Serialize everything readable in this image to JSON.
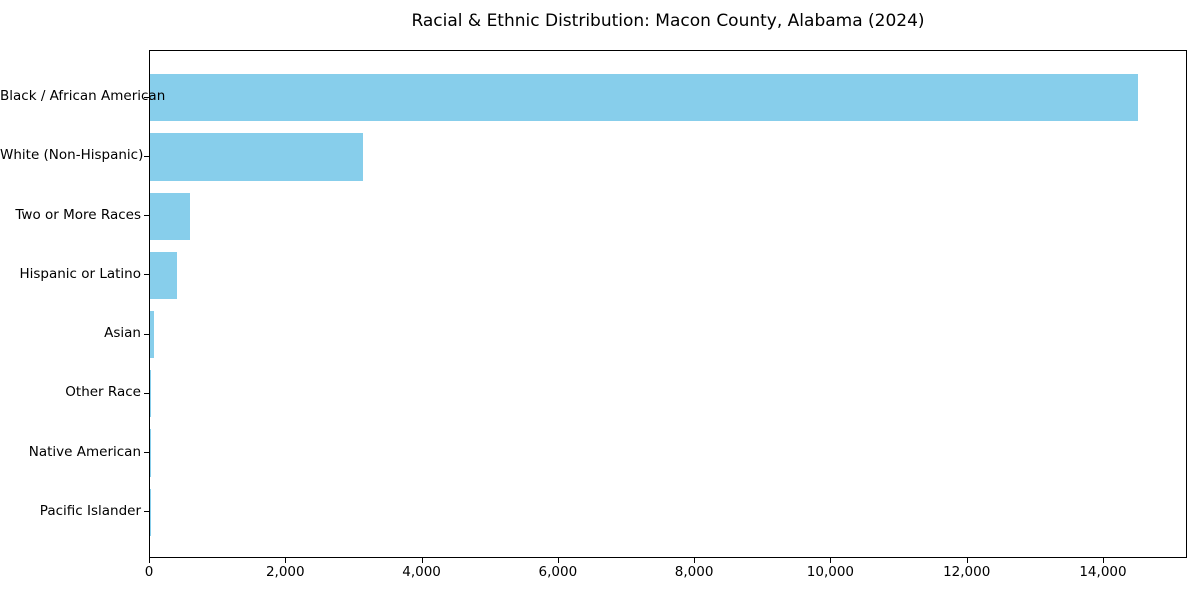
{
  "chart_data": {
    "type": "bar",
    "orientation": "horizontal",
    "title": "Racial & Ethnic Distribution: Macon County, Alabama (2024)",
    "categories": [
      "Black / African American",
      "White (Non-Hispanic)",
      "Two or More Races",
      "Hispanic or Latino",
      "Asian",
      "Other Race",
      "Native American",
      "Pacific Islander"
    ],
    "values": [
      14500,
      3120,
      590,
      400,
      55,
      20,
      10,
      5
    ],
    "xlabel": "",
    "ylabel": "",
    "xlim": [
      0,
      15233
    ],
    "xticks": [
      0,
      2000,
      4000,
      6000,
      8000,
      10000,
      12000,
      14000
    ],
    "xtick_labels": [
      "0",
      "2,000",
      "4,000",
      "6,000",
      "8,000",
      "10,000",
      "12,000",
      "14,000"
    ],
    "bar_color": "#87CEEB",
    "frame_color": "#000000",
    "background_color": "#ffffff",
    "grid": false,
    "legend": null
  }
}
